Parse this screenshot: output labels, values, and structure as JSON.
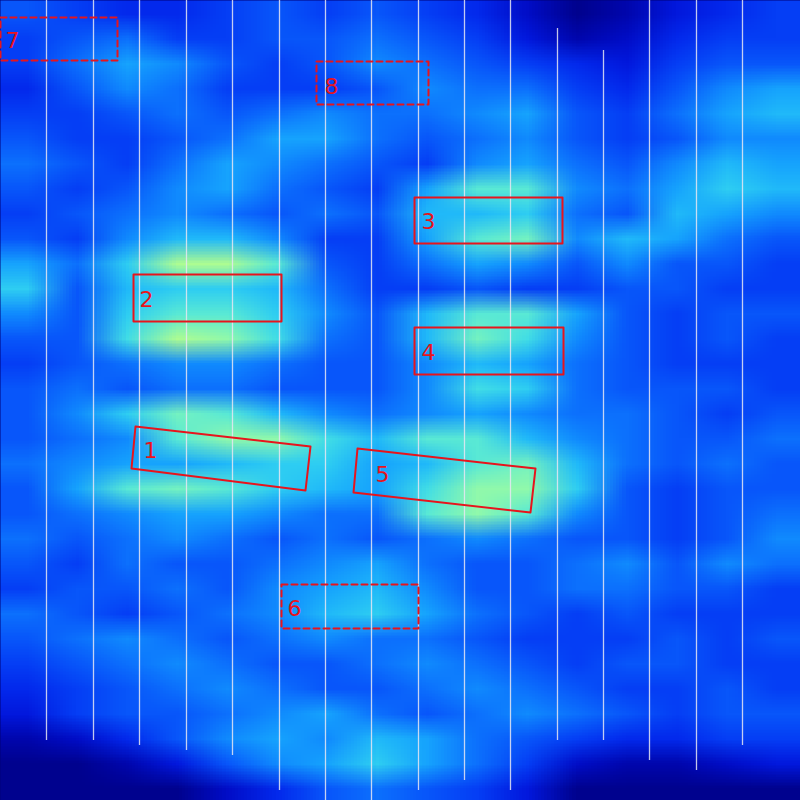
{
  "chart_data": {
    "type": "heatmap",
    "xlim": [
      0,
      800
    ],
    "ylim": [
      800,
      0
    ],
    "tick_labels": false,
    "zlim": [
      0,
      1
    ],
    "columns": 16,
    "rows": 32,
    "cells": [
      [
        0.35,
        0.3,
        0.25,
        0.25,
        0.3,
        0.35,
        0.3,
        0.35,
        0.3,
        0.25,
        0.15,
        0.05,
        0.1,
        0.2,
        0.25,
        0.3
      ],
      [
        0.3,
        0.35,
        0.4,
        0.3,
        0.3,
        0.35,
        0.35,
        0.4,
        0.35,
        0.3,
        0.2,
        0.1,
        0.15,
        0.25,
        0.3,
        0.3
      ],
      [
        0.3,
        0.4,
        0.5,
        0.45,
        0.35,
        0.3,
        0.35,
        0.45,
        0.4,
        0.35,
        0.3,
        0.25,
        0.2,
        0.3,
        0.35,
        0.35
      ],
      [
        0.25,
        0.35,
        0.45,
        0.4,
        0.3,
        0.3,
        0.3,
        0.35,
        0.45,
        0.4,
        0.4,
        0.3,
        0.25,
        0.35,
        0.45,
        0.5
      ],
      [
        0.3,
        0.3,
        0.35,
        0.4,
        0.35,
        0.4,
        0.45,
        0.4,
        0.4,
        0.45,
        0.5,
        0.35,
        0.3,
        0.4,
        0.5,
        0.55
      ],
      [
        0.35,
        0.3,
        0.3,
        0.35,
        0.4,
        0.5,
        0.5,
        0.4,
        0.35,
        0.4,
        0.45,
        0.35,
        0.3,
        0.35,
        0.45,
        0.45
      ],
      [
        0.4,
        0.35,
        0.3,
        0.4,
        0.5,
        0.45,
        0.4,
        0.35,
        0.3,
        0.45,
        0.5,
        0.4,
        0.35,
        0.45,
        0.55,
        0.5
      ],
      [
        0.35,
        0.3,
        0.35,
        0.45,
        0.5,
        0.4,
        0.35,
        0.3,
        0.5,
        0.7,
        0.7,
        0.45,
        0.4,
        0.5,
        0.6,
        0.55
      ],
      [
        0.3,
        0.35,
        0.4,
        0.45,
        0.4,
        0.35,
        0.4,
        0.35,
        0.55,
        0.55,
        0.6,
        0.4,
        0.35,
        0.55,
        0.5,
        0.45
      ],
      [
        0.35,
        0.3,
        0.45,
        0.55,
        0.55,
        0.45,
        0.3,
        0.3,
        0.5,
        0.7,
        0.75,
        0.45,
        0.55,
        0.5,
        0.4,
        0.35
      ],
      [
        0.5,
        0.4,
        0.6,
        0.85,
        0.85,
        0.7,
        0.35,
        0.3,
        0.4,
        0.5,
        0.45,
        0.35,
        0.45,
        0.35,
        0.35,
        0.3
      ],
      [
        0.6,
        0.35,
        0.55,
        0.6,
        0.6,
        0.55,
        0.4,
        0.3,
        0.3,
        0.35,
        0.3,
        0.3,
        0.35,
        0.35,
        0.3,
        0.3
      ],
      [
        0.45,
        0.35,
        0.6,
        0.7,
        0.7,
        0.6,
        0.45,
        0.35,
        0.55,
        0.7,
        0.7,
        0.5,
        0.35,
        0.3,
        0.35,
        0.35
      ],
      [
        0.35,
        0.35,
        0.65,
        0.85,
        0.8,
        0.65,
        0.4,
        0.35,
        0.55,
        0.75,
        0.65,
        0.45,
        0.35,
        0.3,
        0.35,
        0.3
      ],
      [
        0.3,
        0.35,
        0.4,
        0.45,
        0.45,
        0.4,
        0.35,
        0.35,
        0.45,
        0.55,
        0.5,
        0.4,
        0.35,
        0.3,
        0.3,
        0.3
      ],
      [
        0.35,
        0.4,
        0.35,
        0.4,
        0.4,
        0.35,
        0.35,
        0.35,
        0.45,
        0.65,
        0.6,
        0.4,
        0.35,
        0.35,
        0.35,
        0.3
      ],
      [
        0.35,
        0.45,
        0.6,
        0.75,
        0.7,
        0.55,
        0.45,
        0.4,
        0.45,
        0.5,
        0.45,
        0.4,
        0.4,
        0.35,
        0.3,
        0.35
      ],
      [
        0.35,
        0.4,
        0.45,
        0.7,
        0.8,
        0.8,
        0.65,
        0.55,
        0.7,
        0.7,
        0.55,
        0.45,
        0.4,
        0.35,
        0.35,
        0.4
      ],
      [
        0.4,
        0.45,
        0.5,
        0.5,
        0.55,
        0.6,
        0.6,
        0.5,
        0.55,
        0.7,
        0.75,
        0.55,
        0.4,
        0.35,
        0.4,
        0.35
      ],
      [
        0.35,
        0.5,
        0.7,
        0.75,
        0.7,
        0.6,
        0.55,
        0.5,
        0.65,
        0.8,
        0.8,
        0.6,
        0.35,
        0.3,
        0.35,
        0.35
      ],
      [
        0.35,
        0.4,
        0.45,
        0.5,
        0.5,
        0.45,
        0.4,
        0.4,
        0.7,
        0.8,
        0.7,
        0.45,
        0.35,
        0.3,
        0.35,
        0.4
      ],
      [
        0.4,
        0.35,
        0.4,
        0.45,
        0.4,
        0.35,
        0.4,
        0.35,
        0.4,
        0.45,
        0.4,
        0.35,
        0.35,
        0.3,
        0.35,
        0.45
      ],
      [
        0.35,
        0.3,
        0.4,
        0.35,
        0.35,
        0.4,
        0.45,
        0.5,
        0.4,
        0.35,
        0.35,
        0.4,
        0.45,
        0.35,
        0.45,
        0.4
      ],
      [
        0.3,
        0.35,
        0.35,
        0.4,
        0.35,
        0.45,
        0.5,
        0.55,
        0.45,
        0.35,
        0.35,
        0.4,
        0.4,
        0.35,
        0.35,
        0.3
      ],
      [
        0.4,
        0.35,
        0.3,
        0.35,
        0.4,
        0.45,
        0.55,
        0.6,
        0.5,
        0.4,
        0.35,
        0.3,
        0.35,
        0.3,
        0.3,
        0.3
      ],
      [
        0.35,
        0.4,
        0.45,
        0.4,
        0.35,
        0.4,
        0.45,
        0.4,
        0.4,
        0.35,
        0.3,
        0.3,
        0.3,
        0.35,
        0.3,
        0.35
      ],
      [
        0.3,
        0.35,
        0.4,
        0.45,
        0.4,
        0.35,
        0.35,
        0.4,
        0.45,
        0.4,
        0.35,
        0.3,
        0.35,
        0.35,
        0.3,
        0.3
      ],
      [
        0.25,
        0.3,
        0.35,
        0.4,
        0.45,
        0.4,
        0.35,
        0.35,
        0.4,
        0.45,
        0.4,
        0.35,
        0.3,
        0.3,
        0.35,
        0.3
      ],
      [
        0.2,
        0.3,
        0.35,
        0.35,
        0.4,
        0.45,
        0.5,
        0.4,
        0.35,
        0.4,
        0.45,
        0.4,
        0.35,
        0.3,
        0.35,
        0.35
      ],
      [
        0.1,
        0.15,
        0.25,
        0.35,
        0.45,
        0.5,
        0.45,
        0.55,
        0.5,
        0.4,
        0.35,
        0.3,
        0.25,
        0.25,
        0.3,
        0.3
      ],
      [
        0.05,
        0.05,
        0.1,
        0.2,
        0.35,
        0.45,
        0.5,
        0.6,
        0.5,
        0.4,
        0.3,
        0.15,
        0.1,
        0.1,
        0.15,
        0.2
      ],
      [
        0.05,
        0.05,
        0.05,
        0.05,
        0.15,
        0.25,
        0.35,
        0.4,
        0.35,
        0.3,
        0.2,
        0.05,
        0.05,
        0.05,
        0.05,
        0.05
      ]
    ],
    "trace_lines": {
      "x": [
        46,
        93,
        139,
        186,
        232,
        279,
        325,
        371,
        418,
        464,
        510,
        557,
        603,
        649,
        696,
        742
      ],
      "top": [
        0,
        0,
        0,
        0,
        0,
        0,
        0,
        0,
        0,
        0,
        0,
        28,
        50,
        0,
        0,
        0
      ],
      "bottom": [
        740,
        740,
        745,
        750,
        755,
        790,
        800,
        800,
        790,
        780,
        790,
        740,
        740,
        760,
        770,
        745
      ]
    },
    "annotations": [
      {
        "label": "1",
        "line_style": "solid",
        "points": [
          [
            135,
            426
          ],
          [
            310,
            446
          ],
          [
            305,
            490
          ],
          [
            131,
            468
          ]
        ],
        "label_at": [
          150,
          450
        ]
      },
      {
        "label": "2",
        "line_style": "solid",
        "points": [
          [
            133,
            274
          ],
          [
            281,
            274
          ],
          [
            281,
            321
          ],
          [
            133,
            321
          ]
        ],
        "label_at": [
          146,
          299
        ]
      },
      {
        "label": "3",
        "line_style": "solid",
        "points": [
          [
            414,
            197
          ],
          [
            562,
            197
          ],
          [
            562,
            243
          ],
          [
            414,
            243
          ]
        ],
        "label_at": [
          428,
          221
        ]
      },
      {
        "label": "4",
        "line_style": "solid",
        "points": [
          [
            414,
            327
          ],
          [
            563,
            327
          ],
          [
            563,
            374
          ],
          [
            414,
            374
          ]
        ],
        "label_at": [
          428,
          352
        ]
      },
      {
        "label": "5",
        "line_style": "solid",
        "points": [
          [
            357,
            448
          ],
          [
            535,
            468
          ],
          [
            530,
            512
          ],
          [
            353,
            492
          ]
        ],
        "label_at": [
          382,
          474
        ]
      },
      {
        "label": "6",
        "line_style": "dashed",
        "points": [
          [
            281,
            584
          ],
          [
            418,
            584
          ],
          [
            418,
            628
          ],
          [
            281,
            628
          ]
        ],
        "label_at": [
          294,
          608
        ]
      },
      {
        "label": "7",
        "line_style": "dashed",
        "points": [
          [
            0,
            17
          ],
          [
            117,
            17
          ],
          [
            117,
            60
          ],
          [
            0,
            60
          ]
        ],
        "label_at": [
          12,
          40
        ]
      },
      {
        "label": "8",
        "line_style": "dashed",
        "points": [
          [
            316,
            61
          ],
          [
            428,
            61
          ],
          [
            428,
            104
          ],
          [
            316,
            104
          ]
        ],
        "label_at": [
          331,
          86
        ]
      }
    ]
  }
}
